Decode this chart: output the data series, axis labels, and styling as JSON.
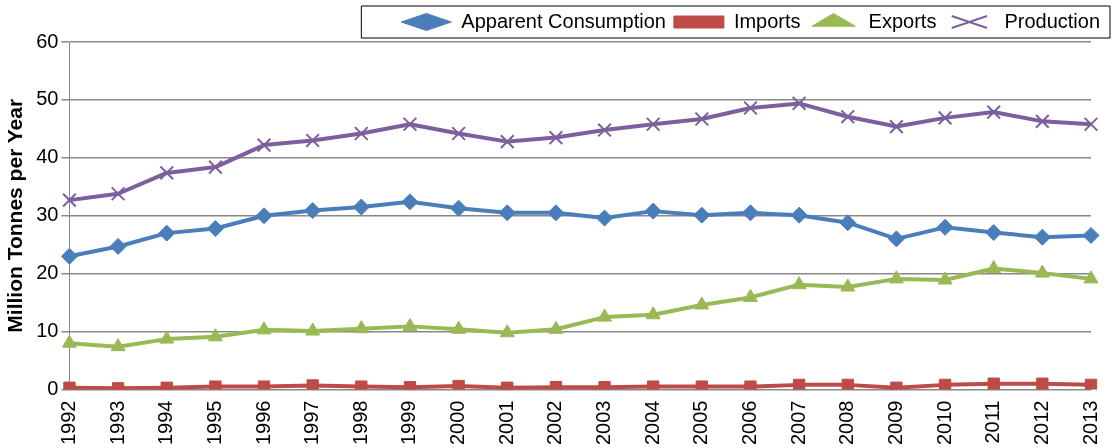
{
  "chart_data": {
    "type": "line",
    "ylabel": "Million Tonnes per Year",
    "categories": [
      "1992",
      "1993",
      "1994",
      "1995",
      "1996",
      "1997",
      "1998",
      "1999",
      "2000",
      "2001",
      "2002",
      "2003",
      "2004",
      "2005",
      "2006",
      "2007",
      "2008",
      "2009",
      "2010",
      "2011",
      "2012",
      "2013"
    ],
    "series": [
      {
        "name": "Apparent Consumption",
        "color": "#4a7ebb",
        "marker": "diamond",
        "values": [
          23,
          24.7,
          27,
          27.8,
          30,
          30.9,
          31.5,
          32.4,
          31.3,
          30.5,
          30.5,
          29.6,
          30.8,
          30.1,
          30.5,
          30.1,
          28.8,
          26,
          28,
          27.1,
          26.3,
          26.6
        ]
      },
      {
        "name": "Imports",
        "color": "#be4b48",
        "marker": "square",
        "values": [
          0.3,
          0.2,
          0.3,
          0.5,
          0.5,
          0.7,
          0.5,
          0.4,
          0.6,
          0.3,
          0.4,
          0.4,
          0.5,
          0.5,
          0.5,
          0.8,
          0.8,
          0.3,
          0.8,
          1,
          1,
          0.8
        ]
      },
      {
        "name": "Exports",
        "color": "#98b954",
        "marker": "triangle",
        "values": [
          8,
          7.4,
          8.7,
          9.1,
          10.3,
          10.1,
          10.5,
          10.9,
          10.4,
          9.8,
          10.4,
          12.5,
          12.9,
          14.6,
          15.9,
          18.1,
          17.7,
          19.1,
          18.9,
          20.9,
          20.1,
          19.1
        ]
      },
      {
        "name": "Production",
        "color": "#7d5fa0",
        "marker": "cross",
        "values": [
          32.7,
          33.8,
          37.4,
          38.4,
          42.2,
          43,
          44.2,
          45.8,
          44.2,
          42.8,
          43.5,
          44.8,
          45.8,
          46.7,
          48.6,
          49.4,
          47.1,
          45.4,
          46.9,
          47.9,
          46.3,
          45.8
        ]
      }
    ],
    "ylim": [
      0,
      60
    ],
    "yticks": [
      0,
      10,
      20,
      30,
      40,
      50,
      60
    ],
    "grid": "y",
    "legend": "top right",
    "line_style": "solid"
  }
}
